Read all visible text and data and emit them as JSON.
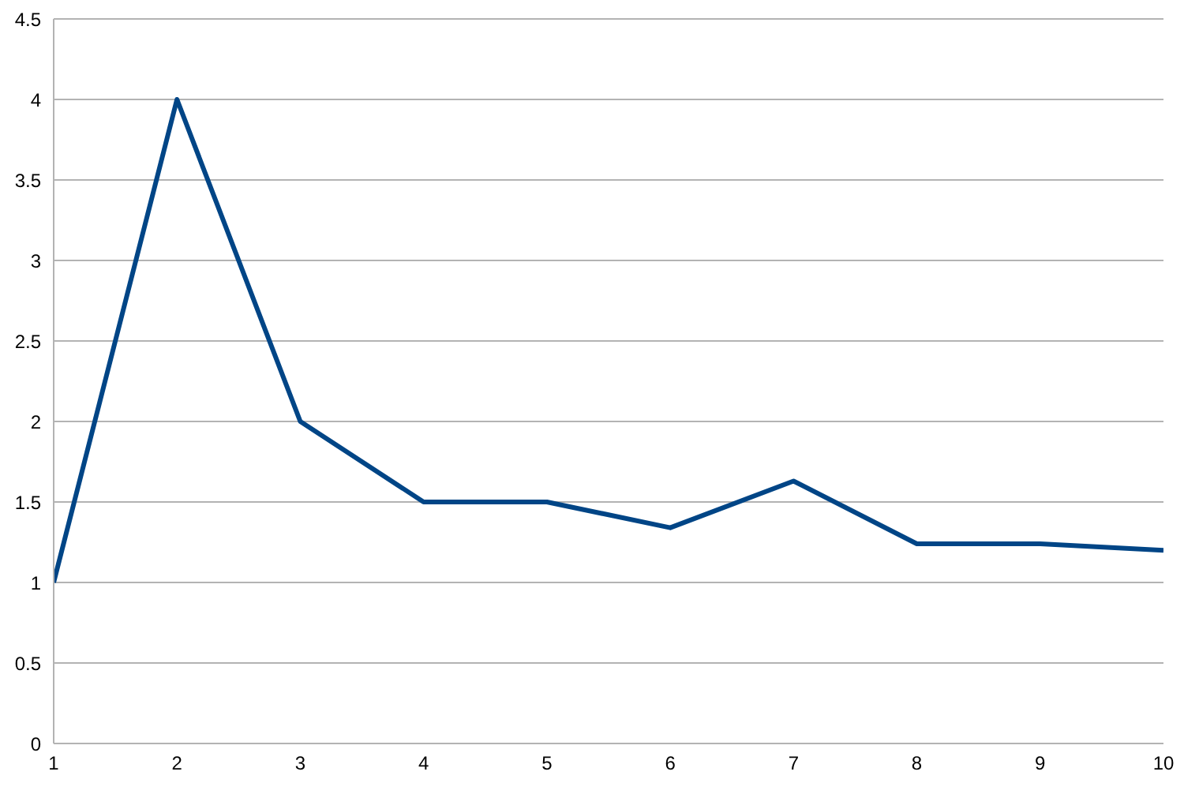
{
  "chart_data": {
    "type": "line",
    "x": [
      1,
      2,
      3,
      4,
      5,
      6,
      7,
      8,
      9,
      10
    ],
    "series": [
      {
        "color": "#004586",
        "values": [
          1,
          4,
          2,
          1.5,
          1.5,
          1.34,
          1.63,
          1.24,
          1.24,
          1.2
        ]
      }
    ],
    "xlim": [
      1,
      10
    ],
    "xticks": [
      1,
      2,
      3,
      4,
      5,
      6,
      7,
      8,
      9,
      10
    ],
    "ylim": [
      0,
      4.5
    ],
    "yticks": [
      0,
      0.5,
      1,
      1.5,
      2,
      2.5,
      3,
      3.5,
      4,
      4.5
    ],
    "grid": "y",
    "legend": false,
    "marker": "none",
    "line_style": "solid"
  }
}
